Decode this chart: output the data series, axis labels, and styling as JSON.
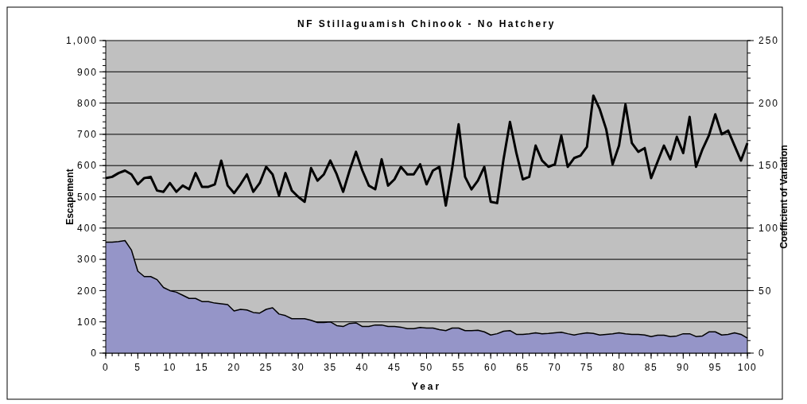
{
  "chart_data": {
    "type": "area",
    "title": "NF Stillaguamish Chinook - No Hatchery",
    "xlabel": "Year",
    "ylabel": "Escapement",
    "y2label": "Coefficient of Variation",
    "x": [
      0,
      1,
      2,
      3,
      4,
      5,
      6,
      7,
      8,
      9,
      10,
      11,
      12,
      13,
      14,
      15,
      16,
      17,
      18,
      19,
      20,
      21,
      22,
      23,
      24,
      25,
      26,
      27,
      28,
      29,
      30,
      31,
      32,
      33,
      34,
      35,
      36,
      37,
      38,
      39,
      40,
      41,
      42,
      43,
      44,
      45,
      46,
      47,
      48,
      49,
      50,
      51,
      52,
      53,
      54,
      55,
      56,
      57,
      58,
      59,
      60,
      61,
      62,
      63,
      64,
      65,
      66,
      67,
      68,
      69,
      70,
      71,
      72,
      73,
      74,
      75,
      76,
      77,
      78,
      79,
      80,
      81,
      82,
      83,
      84,
      85,
      86,
      87,
      88,
      89,
      90,
      91,
      92,
      93,
      94,
      95,
      96,
      97,
      98,
      99,
      100
    ],
    "series": [
      {
        "color": "#9595c8",
        "values": [
          355,
          355,
          357,
          360,
          330,
          262,
          245,
          245,
          235,
          210,
          200,
          195,
          185,
          175,
          175,
          165,
          165,
          160,
          158,
          155,
          135,
          140,
          138,
          130,
          128,
          140,
          145,
          125,
          120,
          110,
          110,
          110,
          105,
          98,
          98,
          100,
          88,
          85,
          95,
          97,
          85,
          85,
          90,
          90,
          85,
          85,
          83,
          78,
          78,
          82,
          80,
          80,
          75,
          72,
          80,
          80,
          72,
          72,
          73,
          68,
          58,
          62,
          70,
          72,
          60,
          60,
          62,
          65,
          62,
          63,
          65,
          67,
          62,
          58,
          62,
          65,
          63,
          58,
          60,
          62,
          65,
          62,
          60,
          60,
          58,
          53,
          57,
          57,
          53,
          55,
          62,
          62,
          53,
          55,
          68,
          68,
          58,
          60,
          65,
          60,
          48
        ]
      },
      {
        "type": "line",
        "axis": "y2",
        "color": "#000000",
        "values": [
          140,
          141,
          144,
          146,
          143,
          135,
          140,
          141,
          130,
          129,
          136,
          129,
          134,
          131,
          144,
          133,
          133,
          135,
          154,
          134,
          128,
          135,
          143,
          129,
          136,
          149,
          143,
          126,
          144,
          130,
          125,
          121,
          148,
          138,
          143,
          154,
          143,
          129,
          146,
          161,
          146,
          134,
          131,
          155,
          134,
          139,
          149,
          143,
          143,
          151,
          135,
          146,
          149,
          118,
          148,
          183,
          141,
          131,
          138,
          149,
          121,
          120,
          155,
          185,
          160,
          139,
          141,
          166,
          154,
          149,
          151,
          174,
          149,
          156,
          158,
          165,
          206,
          195,
          179,
          151,
          166,
          199,
          168,
          161,
          164,
          140,
          153,
          166,
          155,
          173,
          160,
          189,
          149,
          163,
          174,
          191,
          175,
          178,
          166,
          154,
          168
        ]
      }
    ],
    "xlim": [
      0,
      100
    ],
    "xticks": [
      0,
      5,
      10,
      15,
      20,
      25,
      30,
      35,
      40,
      45,
      50,
      55,
      60,
      65,
      70,
      75,
      80,
      85,
      90,
      95,
      100
    ],
    "ylim": [
      0,
      1000
    ],
    "yticks": [
      0,
      100,
      200,
      300,
      400,
      500,
      600,
      700,
      800,
      900,
      {
        "value": 1000,
        "label": "1,000"
      }
    ],
    "y2lim": [
      0,
      250
    ],
    "y2ticks": [
      0,
      50,
      100,
      150,
      200,
      250
    ],
    "grid": "y"
  }
}
